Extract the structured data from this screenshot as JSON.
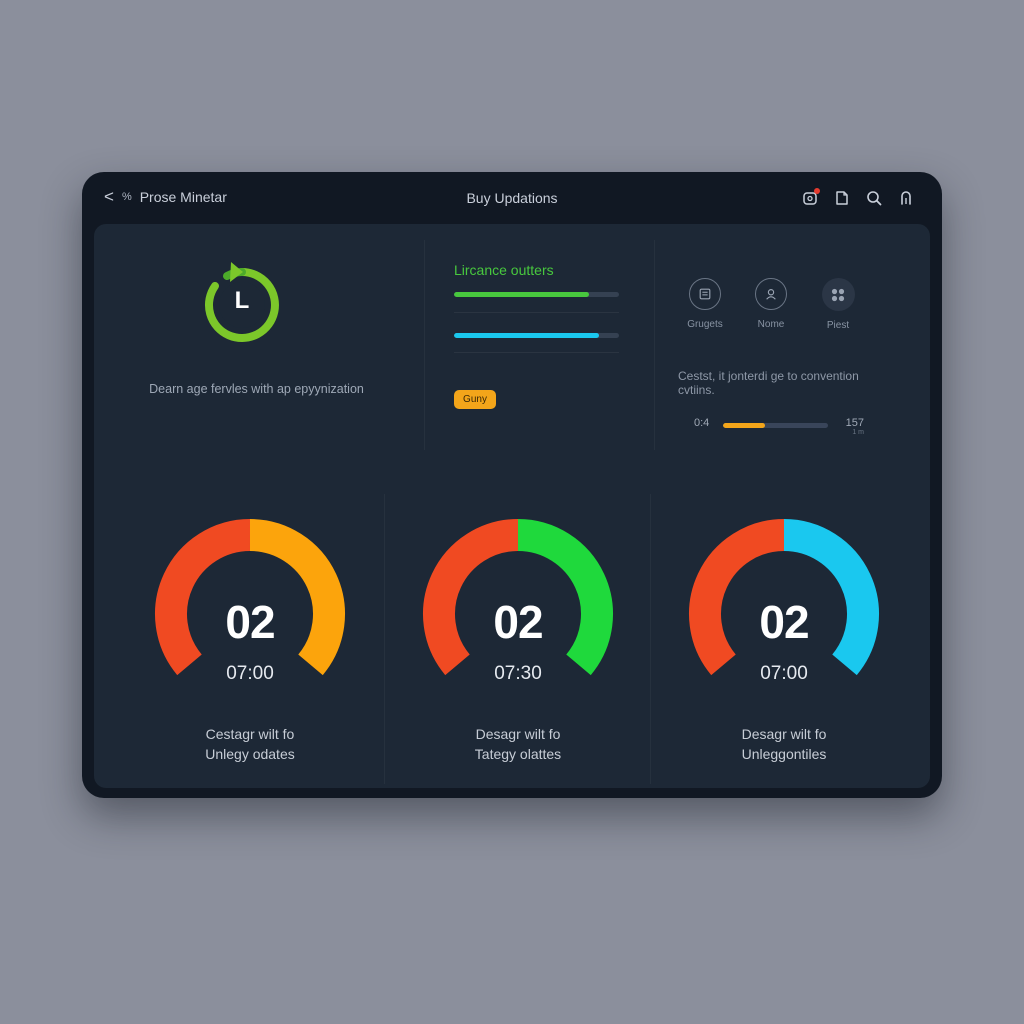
{
  "window": {
    "title": "Buy Updations",
    "back": {
      "glyph": "<",
      "percent": "%",
      "label": "Prose Minetar"
    },
    "toolbar_icons": [
      "notification-icon",
      "note-icon",
      "search-icon",
      "profile-icon"
    ]
  },
  "colors": {
    "window_bg": "#111823",
    "panel_bg": "#1d2836",
    "green": "#48c83e",
    "cyan": "#1ac8ef",
    "amber": "#f3a51a",
    "red": "#f04a22",
    "bright_green": "#1fd93c",
    "orange": "#fca40c"
  },
  "top_left": {
    "icon": "timer-refresh-icon",
    "icon_letter": "L",
    "description": "Dearn age fervles with ap epyynization"
  },
  "top_middle": {
    "title": "Lircance outters",
    "bars": [
      {
        "color": "#48c83e",
        "fraction": 0.82
      },
      {
        "color": "#1ac8ef",
        "fraction": 0.88
      }
    ],
    "badge": "Guny"
  },
  "top_right": {
    "icons": [
      {
        "name": "gadgets-icon",
        "label": "Grugets"
      },
      {
        "name": "user-icon",
        "label": "Nome"
      },
      {
        "name": "grid-icon",
        "label": "Piest"
      }
    ],
    "description": "Cestst, it jonterdi ge to convention cvtiins.",
    "progress": {
      "left": "0:4",
      "right": "157",
      "sub": "1 m",
      "fraction": 0.4
    }
  },
  "gauges": [
    {
      "number": "02",
      "time": "07:00",
      "caption_1": "Cestagr wilt fo",
      "caption_2": "Unlegy odates",
      "left_color": "#f04a22",
      "right_color": "#fca40c"
    },
    {
      "number": "02",
      "time": "07:30",
      "caption_1": "Desagr wilt fo",
      "caption_2": "Tategy olattes",
      "left_color": "#f04a22",
      "right_color": "#1fd93c"
    },
    {
      "number": "02",
      "time": "07:00",
      "caption_1": "Desagr wilt fo",
      "caption_2": "Unleggontiles",
      "left_color": "#f04a22",
      "right_color": "#1ac8ef"
    }
  ]
}
